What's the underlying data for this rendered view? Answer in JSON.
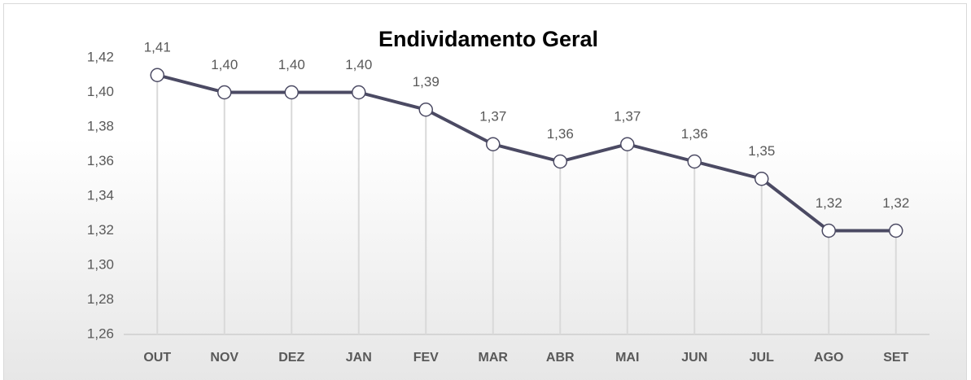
{
  "chart_data": {
    "type": "line",
    "title": "Endividamento Geral",
    "categories": [
      "OUT",
      "NOV",
      "DEZ",
      "JAN",
      "FEV",
      "MAR",
      "ABR",
      "MAI",
      "JUN",
      "JUL",
      "AGO",
      "SET"
    ],
    "values": [
      1.41,
      1.4,
      1.4,
      1.4,
      1.39,
      1.37,
      1.36,
      1.37,
      1.36,
      1.35,
      1.32,
      1.32
    ],
    "value_labels": [
      "1,41",
      "1,40",
      "1,40",
      "1,40",
      "1,39",
      "1,37",
      "1,36",
      "1,37",
      "1,36",
      "1,35",
      "1,32",
      "1,32"
    ],
    "color": "#4b4a63",
    "marker_fill": "#ffffff",
    "drop_lines": true,
    "ylim": [
      1.26,
      1.42
    ],
    "yticks": [
      {
        "value": 1.26,
        "label": "1,26"
      },
      {
        "value": 1.28,
        "label": "1,28"
      },
      {
        "value": 1.3,
        "label": "1,30"
      },
      {
        "value": 1.32,
        "label": "1,32"
      },
      {
        "value": 1.34,
        "label": "1,34"
      },
      {
        "value": 1.36,
        "label": "1,36"
      },
      {
        "value": 1.38,
        "label": "1,38"
      },
      {
        "value": 1.4,
        "label": "1,40"
      },
      {
        "value": 1.42,
        "label": "1,42"
      }
    ]
  }
}
